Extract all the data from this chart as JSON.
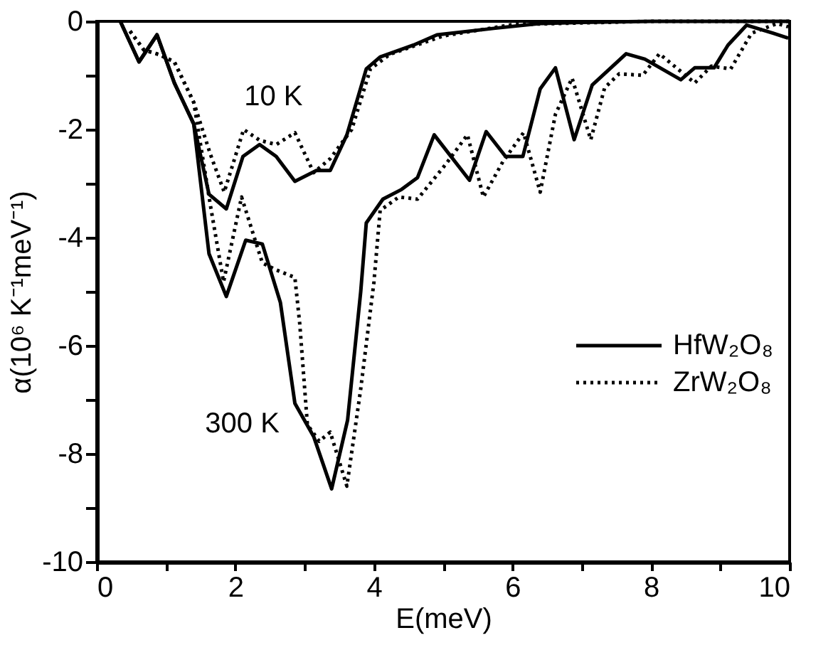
{
  "chart_data": {
    "type": "line",
    "xlabel": "E(meV)",
    "ylabel": "α(10⁶ K⁻¹meV⁻¹)",
    "xlim": [
      0,
      10
    ],
    "ylim": [
      -10,
      0
    ],
    "xticks": [
      0,
      {
        "value": 1,
        "label": null
      },
      2,
      {
        "value": 3,
        "label": null
      },
      4,
      {
        "value": 5,
        "label": null
      },
      6,
      {
        "value": 7,
        "label": null
      },
      8,
      {
        "value": 9,
        "label": null
      },
      10
    ],
    "yticks": [
      -10,
      {
        "value": -9,
        "label": null
      },
      -8,
      {
        "value": -7,
        "label": null
      },
      -6,
      {
        "value": -5,
        "label": null
      },
      -4,
      {
        "value": -3,
        "label": null
      },
      -2,
      {
        "value": -1,
        "label": null
      },
      0
    ],
    "grid": false,
    "legend": "right",
    "series": [
      {
        "name": "HfW₂O₈",
        "color": "#000000",
        "line_style": "solid",
        "x": [
          0.34,
          0.61,
          0.87,
          1.12,
          1.4,
          1.62,
          1.87,
          2.11,
          2.35,
          2.59,
          2.86,
          3.17,
          3.37,
          3.61,
          3.89,
          4.09,
          4.57,
          4.91,
          5.73,
          6.4,
          7.0,
          8.0,
          10.0
        ],
        "values": [
          0,
          -0.75,
          -0.25,
          -1.14,
          -1.9,
          -3.2,
          -3.47,
          -2.5,
          -2.28,
          -2.5,
          -2.96,
          -2.76,
          -2.76,
          -2.1,
          -0.88,
          -0.66,
          -0.44,
          -0.25,
          -0.13,
          -0.04,
          -0.02,
          0,
          0
        ]
      },
      {
        "name": "ZrW₂O₈",
        "color": "#000000",
        "line_style": "dotted",
        "x": [
          0.48,
          0.68,
          0.89,
          1.12,
          1.4,
          1.64,
          1.84,
          2.12,
          2.35,
          2.59,
          2.86,
          3.13,
          3.37,
          3.68,
          3.95,
          4.23,
          5.0,
          6.0,
          8.0,
          10.0
        ],
        "values": [
          -0.18,
          -0.53,
          -0.61,
          -0.75,
          -1.5,
          -2.46,
          -3.16,
          -2.0,
          -2.2,
          -2.28,
          -2.06,
          -2.8,
          -2.54,
          -2.0,
          -0.88,
          -0.61,
          -0.27,
          -0.06,
          0,
          0
        ]
      },
      {
        "color": "#000000",
        "line_style": "solid",
        "x": [
          0.34,
          0.61,
          0.87,
          1.12,
          1.4,
          1.62,
          1.87,
          2.15,
          2.39,
          2.65,
          2.86,
          3.13,
          3.39,
          3.62,
          3.81,
          3.89,
          4.13,
          4.4,
          4.63,
          4.87,
          5.38,
          5.62,
          5.9,
          6.15,
          6.4,
          6.62,
          6.89,
          7.15,
          7.64,
          7.91,
          8.43,
          8.63,
          8.91,
          9.11,
          9.38,
          9.76,
          9.98
        ],
        "values": [
          0,
          -0.75,
          -0.25,
          -1.14,
          -1.9,
          -4.3,
          -5.09,
          -4.05,
          -4.12,
          -5.2,
          -7.07,
          -7.68,
          -8.65,
          -7.38,
          -5.0,
          -3.73,
          -3.29,
          -3.11,
          -2.89,
          -2.1,
          -2.94,
          -2.04,
          -2.5,
          -2.5,
          -1.25,
          -0.86,
          -2.19,
          -1.18,
          -0.6,
          -0.7,
          -1.08,
          -0.86,
          -0.86,
          -0.44,
          -0.07,
          -0.22,
          -0.31
        ]
      },
      {
        "color": "#000000",
        "line_style": "dotted",
        "x": [
          0.48,
          0.68,
          0.89,
          1.12,
          1.4,
          1.64,
          1.83,
          2.09,
          2.39,
          2.59,
          2.86,
          2.93,
          3.04,
          3.21,
          3.37,
          3.61,
          3.81,
          4.0,
          4.09,
          4.36,
          4.63,
          5.04,
          5.35,
          5.58,
          5.86,
          6.16,
          6.4,
          6.62,
          6.86,
          7.13,
          7.33,
          7.54,
          7.88,
          8.12,
          8.63,
          8.87,
          9.15,
          9.45,
          9.82,
          9.98
        ],
        "values": [
          -0.18,
          -0.53,
          -0.61,
          -0.75,
          -1.5,
          -3.4,
          -4.82,
          -3.25,
          -4.47,
          -4.6,
          -4.74,
          -5.6,
          -7.46,
          -7.77,
          -7.6,
          -8.6,
          -6.8,
          -4.83,
          -3.5,
          -3.25,
          -3.29,
          -2.64,
          -2.1,
          -3.25,
          -2.6,
          -2.06,
          -3.16,
          -1.72,
          -1.05,
          -2.19,
          -1.23,
          -0.97,
          -1.0,
          -0.6,
          -1.14,
          -0.83,
          -0.88,
          -0.22,
          -0.04,
          -0.1
        ]
      }
    ],
    "annotations": [
      "10 K",
      "300 K"
    ]
  }
}
